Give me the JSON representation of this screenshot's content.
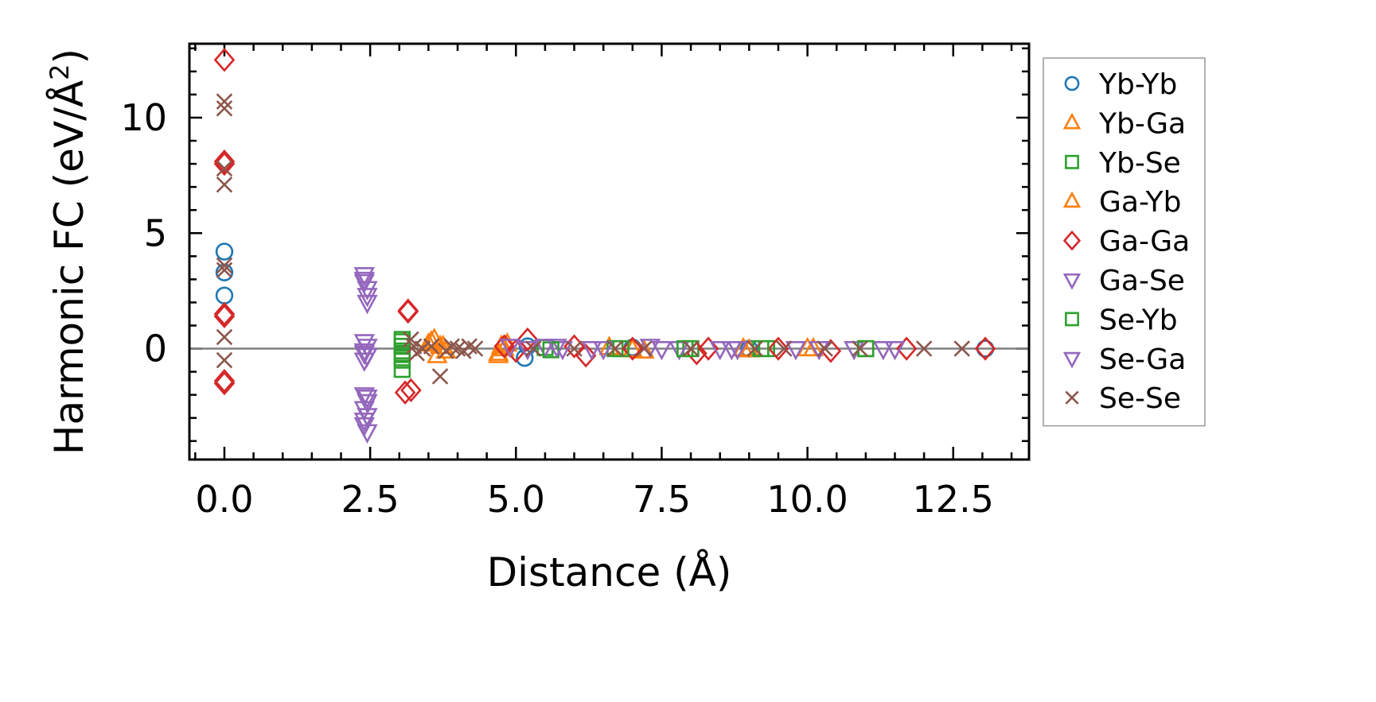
{
  "chart_data": {
    "type": "scatter",
    "title": "",
    "xlabel": "Distance (Å)",
    "ylabel_main": "Harmonic FC (eV/Å",
    "ylabel_sup": "2",
    "ylabel_close": ")",
    "xlim": [
      -0.6,
      13.8
    ],
    "ylim": [
      -4.8,
      13.2
    ],
    "xticks": [
      0.0,
      2.5,
      5.0,
      7.5,
      10.0,
      12.5
    ],
    "xtick_labels": [
      "0.0",
      "2.5",
      "5.0",
      "7.5",
      "10.0",
      "12.5"
    ],
    "yticks": [
      0,
      5,
      10
    ],
    "ytick_labels": [
      "0",
      "5",
      "10"
    ],
    "zero_line": 0,
    "legend_position": "outside-right",
    "series": [
      {
        "name": "Yb-Yb",
        "marker": "circle",
        "color": "#1f77b4",
        "points": [
          [
            0,
            4.2
          ],
          [
            0,
            3.3
          ],
          [
            0,
            2.3
          ],
          [
            5.15,
            -0.4
          ],
          [
            5.2,
            0.1
          ],
          [
            13.05,
            0
          ],
          [
            7.0,
            0.05
          ],
          [
            9.0,
            0.0
          ]
        ]
      },
      {
        "name": "Yb-Ga",
        "marker": "triangle-up",
        "color": "#ff7f0e",
        "points": [
          [
            3.5,
            0.2
          ],
          [
            3.6,
            0.4
          ],
          [
            3.65,
            -0.3
          ],
          [
            3.7,
            0.1
          ],
          [
            3.8,
            -0.1
          ],
          [
            4.7,
            -0.2
          ],
          [
            4.75,
            0.1
          ],
          [
            4.8,
            0.0
          ],
          [
            6.6,
            0.05
          ],
          [
            7.2,
            -0.1
          ],
          [
            8.9,
            0.0
          ],
          [
            10.1,
            0.0
          ]
        ]
      },
      {
        "name": "Yb-Se",
        "marker": "square",
        "color": "#2ca02c",
        "points": [
          [
            3.05,
            0.4
          ],
          [
            3.05,
            0.1
          ],
          [
            3.05,
            -0.2
          ],
          [
            3.05,
            -0.5
          ],
          [
            3.05,
            -0.9
          ],
          [
            5.5,
            0.05
          ],
          [
            6.7,
            0.0
          ],
          [
            8.0,
            0.0
          ],
          [
            9.3,
            0.0
          ],
          [
            11.0,
            0.0
          ]
        ]
      },
      {
        "name": "Ga-Yb",
        "marker": "triangle-up",
        "color": "#ff7f0e",
        "points": [
          [
            3.55,
            0.3
          ],
          [
            3.75,
            0.1
          ],
          [
            4.7,
            -0.3
          ],
          [
            4.85,
            0.2
          ],
          [
            7.0,
            -0.05
          ],
          [
            9.0,
            -0.05
          ],
          [
            10.0,
            0.0
          ]
        ]
      },
      {
        "name": "Ga-Ga",
        "marker": "diamond",
        "color": "#d62728",
        "points": [
          [
            0,
            12.5
          ],
          [
            0,
            8.1
          ],
          [
            0,
            8.0
          ],
          [
            0,
            1.5
          ],
          [
            0,
            1.4
          ],
          [
            0,
            -1.4
          ],
          [
            0,
            -1.5
          ],
          [
            3.15,
            1.65
          ],
          [
            3.15,
            1.6
          ],
          [
            3.1,
            -1.9
          ],
          [
            3.2,
            -1.8
          ],
          [
            4.8,
            0.1
          ],
          [
            5.0,
            -0.1
          ],
          [
            5.2,
            0.4
          ],
          [
            6.0,
            0.1
          ],
          [
            6.2,
            -0.3
          ],
          [
            7.0,
            0.0
          ],
          [
            8.1,
            -0.2
          ],
          [
            8.3,
            0.0
          ],
          [
            9.5,
            0.0
          ],
          [
            10.4,
            -0.1
          ],
          [
            11.7,
            0.0
          ],
          [
            13.05,
            0.0
          ]
        ]
      },
      {
        "name": "Ga-Se",
        "marker": "triangle-down",
        "color": "#9467bd",
        "points": [
          [
            2.4,
            3.2
          ],
          [
            2.4,
            2.9
          ],
          [
            2.45,
            2.6
          ],
          [
            2.45,
            2.3
          ],
          [
            2.4,
            0.3
          ],
          [
            2.45,
            0.1
          ],
          [
            2.4,
            -0.1
          ],
          [
            2.45,
            -0.3
          ],
          [
            2.4,
            -0.5
          ],
          [
            2.4,
            -2.0
          ],
          [
            2.45,
            -2.3
          ],
          [
            2.4,
            -2.6
          ],
          [
            2.45,
            -2.9
          ],
          [
            2.4,
            -3.3
          ],
          [
            2.45,
            -3.6
          ],
          [
            5.5,
            0.1
          ],
          [
            5.8,
            0.0
          ],
          [
            6.5,
            0.0
          ],
          [
            7.3,
            0.1
          ],
          [
            7.8,
            0.0
          ],
          [
            8.5,
            0.0
          ],
          [
            8.8,
            0.0
          ],
          [
            9.8,
            0.0
          ],
          [
            10.8,
            0.0
          ],
          [
            11.3,
            0.0
          ]
        ]
      },
      {
        "name": "Se-Yb",
        "marker": "square",
        "color": "#2ca02c",
        "points": [
          [
            3.05,
            0.3
          ],
          [
            3.05,
            -0.1
          ],
          [
            3.05,
            -0.4
          ],
          [
            5.6,
            -0.05
          ],
          [
            6.8,
            0.0
          ],
          [
            7.9,
            0.0
          ],
          [
            9.2,
            0.0
          ],
          [
            11.0,
            0.0
          ]
        ]
      },
      {
        "name": "Se-Ga",
        "marker": "triangle-down",
        "color": "#9467bd",
        "points": [
          [
            2.4,
            3.0
          ],
          [
            2.45,
            2.0
          ],
          [
            2.4,
            -0.2
          ],
          [
            2.45,
            -2.1
          ],
          [
            2.4,
            -3.1
          ],
          [
            4.9,
            0.1
          ],
          [
            5.2,
            0.0
          ],
          [
            5.7,
            0.1
          ],
          [
            6.3,
            0.0
          ],
          [
            7.5,
            0.0
          ],
          [
            8.7,
            0.0
          ],
          [
            10.2,
            0.0
          ],
          [
            11.5,
            0.0
          ]
        ]
      },
      {
        "name": "Se-Se",
        "marker": "x",
        "color": "#8c564b",
        "points": [
          [
            0,
            10.7
          ],
          [
            0,
            10.4
          ],
          [
            0,
            7.8
          ],
          [
            0,
            7.1
          ],
          [
            0,
            3.6
          ],
          [
            0,
            3.4
          ],
          [
            0,
            0.5
          ],
          [
            0,
            -0.5
          ],
          [
            3.2,
            0.4
          ],
          [
            3.25,
            0.1
          ],
          [
            3.3,
            -0.2
          ],
          [
            3.4,
            0.0
          ],
          [
            3.55,
            0.1
          ],
          [
            3.7,
            -1.2
          ],
          [
            3.8,
            -0.1
          ],
          [
            3.9,
            0.1
          ],
          [
            4.0,
            0.0
          ],
          [
            4.1,
            -0.1
          ],
          [
            4.2,
            0.1
          ],
          [
            4.3,
            0.0
          ],
          [
            5.3,
            0.0
          ],
          [
            6.0,
            0.0
          ],
          [
            6.7,
            0.0
          ],
          [
            7.2,
            0.0
          ],
          [
            8.0,
            0.0
          ],
          [
            9.1,
            0.0
          ],
          [
            9.6,
            0.0
          ],
          [
            10.3,
            0.0
          ],
          [
            10.9,
            0.0
          ],
          [
            12.0,
            0.0
          ],
          [
            12.65,
            0.0
          ]
        ]
      }
    ]
  }
}
